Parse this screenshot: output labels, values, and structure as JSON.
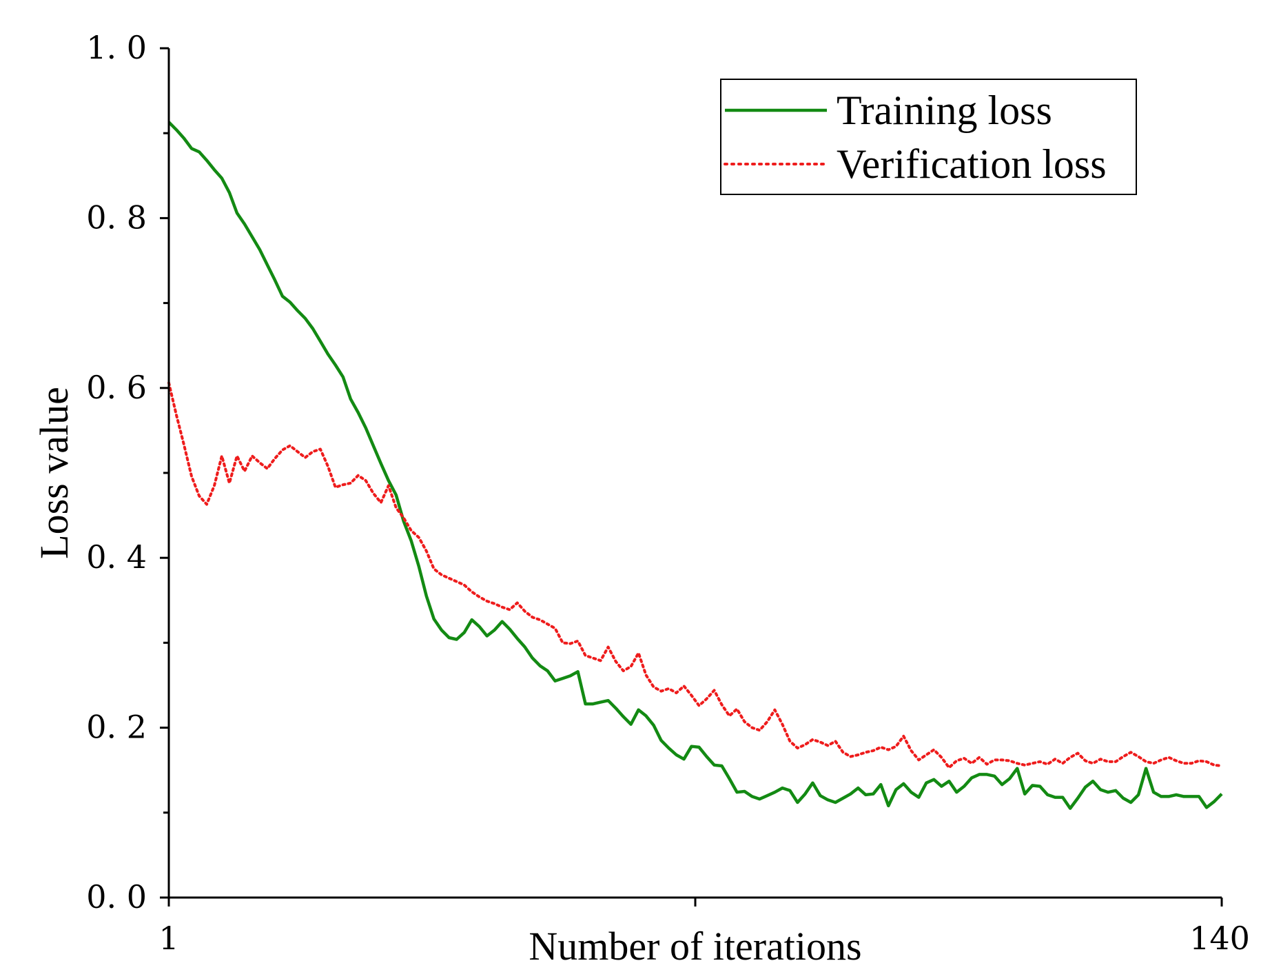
{
  "chart_data": {
    "type": "line",
    "xlabel": "Number of iterations",
    "ylabel": "Loss value",
    "xlim": [
      1,
      140
    ],
    "ylim": [
      0.0,
      1.0
    ],
    "x_tick_labels": [
      "1",
      "140"
    ],
    "y_tick_labels": [
      "0. 0",
      "0. 2",
      "0. 4",
      "0. 6",
      "0. 8",
      "1. 0"
    ],
    "y_tick_values": [
      0.0,
      0.2,
      0.4,
      0.6,
      0.8,
      1.0
    ],
    "legend_position": "top-right",
    "series": [
      {
        "name": "Training loss",
        "color": "#138a13",
        "style": "solid",
        "x": [
          1,
          2,
          3,
          4,
          5,
          6,
          7,
          8,
          9,
          10,
          11,
          12,
          13,
          14,
          15,
          16,
          17,
          18,
          19,
          20,
          21,
          22,
          23,
          24,
          25,
          26,
          27,
          28,
          29,
          30,
          31,
          32,
          33,
          34,
          35,
          36,
          37,
          38,
          39,
          40,
          41,
          42,
          43,
          44,
          45,
          46,
          47,
          48,
          49,
          50,
          51,
          52,
          53,
          54,
          55,
          56,
          57,
          58,
          59,
          60,
          61,
          62,
          63,
          64,
          65,
          66,
          67,
          68,
          69,
          70,
          71,
          72,
          73,
          74,
          75,
          76,
          77,
          78,
          79,
          80,
          81,
          82,
          83,
          84,
          85,
          86,
          87,
          88,
          89,
          90,
          91,
          92,
          93,
          94,
          95,
          96,
          97,
          98,
          99,
          100,
          101,
          102,
          103,
          104,
          105,
          106,
          107,
          108,
          109,
          110,
          111,
          112,
          113,
          114,
          115,
          116,
          117,
          118,
          119,
          120,
          121,
          122,
          123,
          124,
          125,
          126,
          127,
          128,
          129,
          130,
          131,
          132,
          133,
          134,
          135,
          136,
          137,
          138,
          139,
          140
        ],
        "y": [
          0.913,
          0.904,
          0.894,
          0.882,
          0.878,
          0.868,
          0.857,
          0.847,
          0.83,
          0.806,
          0.793,
          0.778,
          0.763,
          0.745,
          0.727,
          0.708,
          0.701,
          0.691,
          0.682,
          0.67,
          0.655,
          0.64,
          0.627,
          0.613,
          0.587,
          0.571,
          0.553,
          0.532,
          0.511,
          0.491,
          0.474,
          0.443,
          0.42,
          0.39,
          0.355,
          0.328,
          0.315,
          0.306,
          0.304,
          0.312,
          0.327,
          0.319,
          0.308,
          0.315,
          0.325,
          0.316,
          0.305,
          0.295,
          0.282,
          0.273,
          0.267,
          0.255,
          0.258,
          0.261,
          0.266,
          0.228,
          0.228,
          0.23,
          0.232,
          0.223,
          0.213,
          0.204,
          0.221,
          0.214,
          0.203,
          0.185,
          0.176,
          0.168,
          0.163,
          0.178,
          0.177,
          0.166,
          0.156,
          0.155,
          0.14,
          0.124,
          0.125,
          0.119,
          0.116,
          0.12,
          0.124,
          0.129,
          0.126,
          0.112,
          0.122,
          0.135,
          0.12,
          0.115,
          0.112,
          0.117,
          0.122,
          0.129,
          0.121,
          0.122,
          0.133,
          0.108,
          0.127,
          0.134,
          0.124,
          0.118,
          0.135,
          0.139,
          0.131,
          0.137,
          0.124,
          0.131,
          0.141,
          0.145,
          0.145,
          0.143,
          0.133,
          0.14,
          0.152,
          0.122,
          0.132,
          0.131,
          0.121,
          0.118,
          0.118,
          0.105,
          0.117,
          0.13,
          0.137,
          0.127,
          0.124,
          0.126,
          0.117,
          0.112,
          0.121,
          0.152,
          0.124,
          0.119,
          0.119,
          0.121,
          0.119,
          0.119,
          0.119,
          0.106,
          0.113,
          0.122
        ]
      },
      {
        "name": "Verification loss",
        "color": "#ee1c1c",
        "style": "dotted",
        "x": [
          1,
          2,
          3,
          4,
          5,
          6,
          7,
          8,
          9,
          10,
          11,
          12,
          13,
          14,
          15,
          16,
          17,
          18,
          19,
          20,
          21,
          22,
          23,
          24,
          25,
          26,
          27,
          28,
          29,
          30,
          31,
          32,
          33,
          34,
          35,
          36,
          37,
          38,
          39,
          40,
          41,
          42,
          43,
          44,
          45,
          46,
          47,
          48,
          49,
          50,
          51,
          52,
          53,
          54,
          55,
          56,
          57,
          58,
          59,
          60,
          61,
          62,
          63,
          64,
          65,
          66,
          67,
          68,
          69,
          70,
          71,
          72,
          73,
          74,
          75,
          76,
          77,
          78,
          79,
          80,
          81,
          82,
          83,
          84,
          85,
          86,
          87,
          88,
          89,
          90,
          91,
          92,
          93,
          94,
          95,
          96,
          97,
          98,
          99,
          100,
          101,
          102,
          103,
          104,
          105,
          106,
          107,
          108,
          109,
          110,
          111,
          112,
          113,
          114,
          115,
          116,
          117,
          118,
          119,
          120,
          121,
          122,
          123,
          124,
          125,
          126,
          127,
          128,
          129,
          130,
          131,
          132,
          133,
          134,
          135,
          136,
          137,
          138,
          139,
          140
        ],
        "y": [
          0.606,
          0.568,
          0.533,
          0.496,
          0.473,
          0.463,
          0.485,
          0.52,
          0.488,
          0.52,
          0.502,
          0.52,
          0.512,
          0.505,
          0.517,
          0.527,
          0.532,
          0.525,
          0.518,
          0.525,
          0.528,
          0.508,
          0.483,
          0.486,
          0.488,
          0.497,
          0.491,
          0.476,
          0.465,
          0.485,
          0.459,
          0.447,
          0.432,
          0.424,
          0.408,
          0.387,
          0.38,
          0.376,
          0.372,
          0.368,
          0.36,
          0.354,
          0.349,
          0.346,
          0.342,
          0.339,
          0.347,
          0.337,
          0.33,
          0.327,
          0.322,
          0.317,
          0.3,
          0.299,
          0.302,
          0.285,
          0.282,
          0.279,
          0.295,
          0.278,
          0.267,
          0.272,
          0.288,
          0.262,
          0.248,
          0.243,
          0.246,
          0.241,
          0.249,
          0.238,
          0.226,
          0.234,
          0.244,
          0.227,
          0.214,
          0.222,
          0.207,
          0.2,
          0.197,
          0.207,
          0.221,
          0.204,
          0.184,
          0.176,
          0.18,
          0.186,
          0.183,
          0.179,
          0.184,
          0.171,
          0.166,
          0.168,
          0.171,
          0.173,
          0.177,
          0.174,
          0.178,
          0.19,
          0.173,
          0.162,
          0.168,
          0.174,
          0.165,
          0.153,
          0.161,
          0.164,
          0.158,
          0.165,
          0.157,
          0.162,
          0.162,
          0.161,
          0.158,
          0.156,
          0.158,
          0.16,
          0.157,
          0.163,
          0.158,
          0.165,
          0.17,
          0.161,
          0.158,
          0.163,
          0.16,
          0.16,
          0.166,
          0.171,
          0.166,
          0.16,
          0.158,
          0.162,
          0.165,
          0.161,
          0.158,
          0.158,
          0.161,
          0.16,
          0.156,
          0.155
        ]
      }
    ]
  }
}
